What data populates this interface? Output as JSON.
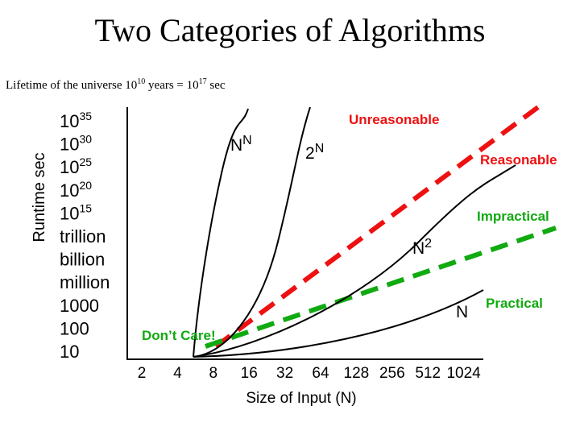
{
  "slide": {
    "title": "Two Categories of Algorithms",
    "lifetime": {
      "prefix": "Lifetime of the universe 10",
      "exp1": "10",
      "middle": " years = 10",
      "exp2": "17",
      "suffix": " sec"
    }
  },
  "chart_data": {
    "type": "line",
    "ylabel": "Runtime sec",
    "xlabel": "Size of Input (N)",
    "y_ticks": [
      {
        "base": "10",
        "exp": "35"
      },
      {
        "base": "10",
        "exp": "30"
      },
      {
        "base": "10",
        "exp": "25"
      },
      {
        "base": "10",
        "exp": "20"
      },
      {
        "base": "10",
        "exp": "15"
      },
      {
        "base": "trillion",
        "exp": ""
      },
      {
        "base": "billion",
        "exp": ""
      },
      {
        "base": "million",
        "exp": ""
      },
      {
        "base": "1000",
        "exp": ""
      },
      {
        "base": "100",
        "exp": ""
      },
      {
        "base": "10",
        "exp": ""
      }
    ],
    "x_ticks": [
      "2",
      "4",
      "8",
      "16",
      "32",
      "64",
      "128",
      "256",
      "512",
      "1024"
    ],
    "series": [
      {
        "name": "N^N",
        "label_base": "N",
        "label_exp": "N",
        "x": [
          2,
          4,
          8,
          16,
          32
        ],
        "y": [
          4,
          256,
          16777216,
          1.8e+19,
          1.5e+48
        ]
      },
      {
        "name": "2^N",
        "label_base": "2",
        "label_exp": "N",
        "x": [
          2,
          4,
          8,
          16,
          32,
          64,
          128
        ],
        "y": [
          4,
          16,
          256,
          65536,
          4300000000.0,
          1.8e+19,
          3.4e+38
        ]
      },
      {
        "name": "N^2",
        "label_base": "N",
        "label_exp": "2",
        "x": [
          2,
          4,
          8,
          16,
          32,
          64,
          128,
          256,
          512,
          1024
        ],
        "y": [
          4,
          16,
          64,
          256,
          1024,
          4096,
          16384,
          65536,
          262144,
          1048576
        ]
      },
      {
        "name": "N",
        "label_base": "N",
        "label_exp": "",
        "x": [
          2,
          4,
          8,
          16,
          32,
          64,
          128,
          256,
          512,
          1024
        ],
        "y": [
          2,
          4,
          8,
          16,
          32,
          64,
          128,
          256,
          512,
          1024
        ]
      }
    ],
    "dividers": [
      {
        "name": "reasonable-vs-unreasonable",
        "color": "#ee1111",
        "style": "dashed"
      },
      {
        "name": "practical-vs-impractical",
        "color": "#11aa11",
        "style": "dashed"
      }
    ],
    "annotations": {
      "unreasonable": "Unreasonable",
      "reasonable": "Reasonable",
      "impractical": "Impractical",
      "practical": "Practical",
      "dont_care": "Don’t Care!"
    },
    "colors": {
      "unreasonable": "#ee1111",
      "reasonable": "#ee1111",
      "impractical": "#11aa11",
      "practical": "#11aa11",
      "dont_care": "#11aa11"
    }
  }
}
